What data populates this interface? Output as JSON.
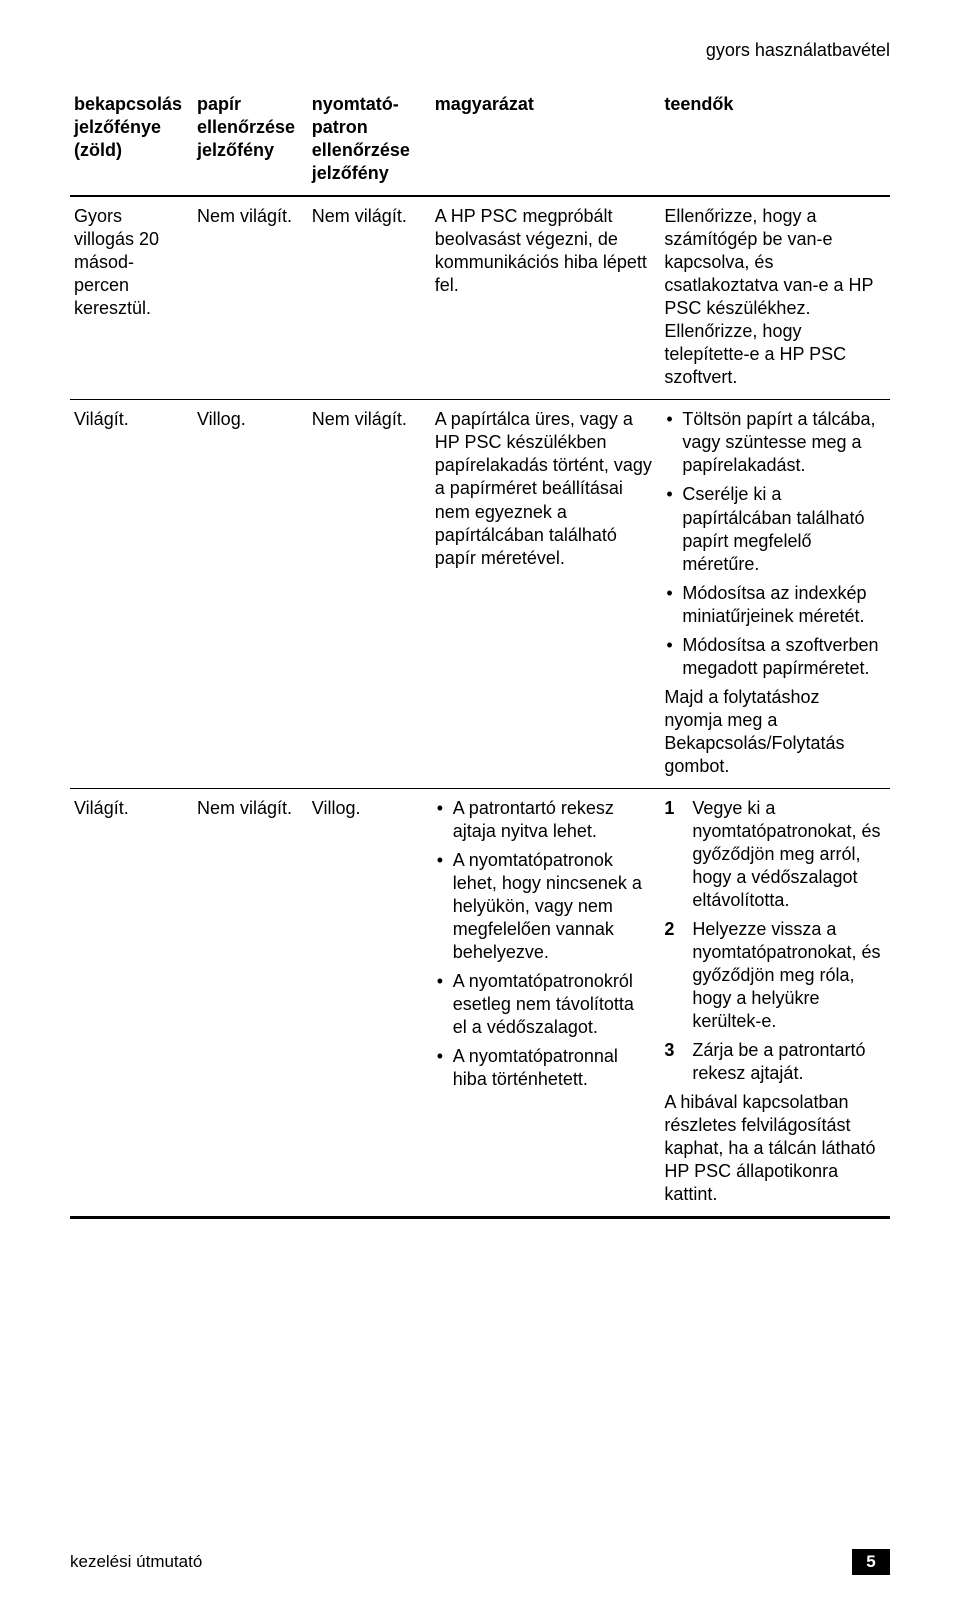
{
  "running_head": "gyors használatbavétel",
  "footer": {
    "label": "kezelési útmutató",
    "page": "5"
  },
  "table": {
    "headers": [
      "bekapcsolás jelzőfénye (zöld)",
      "papír ellenőrzése jelzőfény",
      "nyomtató-patron ellenőrzése jelzőfény",
      "magyarázat",
      "teendők"
    ],
    "rows": [
      {
        "c1": "Gyors villogás 20 másod-percen keresztül.",
        "c2": "Nem világít.",
        "c3": "Nem világít.",
        "c4_text": "A HP PSC megpróbált beolvasást végezni, de kommunikációs hiba lépett fel.",
        "c5_text": "Ellenőrizze, hogy a számítógép be van-e kapcsolva, és csatlakoztatva van-e a HP PSC készülékhez. Ellenőrizze, hogy telepítette-e a HP PSC szoftvert."
      },
      {
        "c1": "Világít.",
        "c2": "Villog.",
        "c3": "Nem világít.",
        "c4_text": "A papírtálca üres, vagy a HP PSC készülékben papírelakadás történt, vagy a papírméret beállításai nem egyeznek a papírtálcában található papír méretével.",
        "c5_list": [
          "Töltsön papírt a tálcába, vagy szüntesse meg a papírelakadást.",
          "Cserélje ki a papírtálcában található papírt megfelelő méretűre.",
          "Módosítsa az indexkép miniatűrjeinek méretét.",
          "Módosítsa a szoftverben megadott papírméretet."
        ],
        "c5_after": "Majd a folytatáshoz nyomja meg a Bekapcsolás/Folytatás gombot."
      },
      {
        "c1": "Világít.",
        "c2": "Nem világít.",
        "c3": "Villog.",
        "c4_list": [
          "A patrontartó rekesz ajtaja nyitva lehet.",
          "A nyomtatópatronok lehet, hogy nincsenek a helyükön, vagy nem megfelelően vannak behelyezve.",
          "A nyomtatópatronokról esetleg nem távolította el a védőszalagot.",
          "A nyomtatópatronnal hiba történhetett."
        ],
        "c5_numlist": [
          {
            "n": "1",
            "t": "Vegye ki a nyomtatópatronokat, és győződjön meg arról, hogy a védőszalagot eltávolította."
          },
          {
            "n": "2",
            "t": "Helyezze vissza a nyomtatópatronokat, és győződjön meg róla, hogy a helyükre kerültek-e."
          },
          {
            "n": "3",
            "t": "Zárja be a patrontartó rekesz ajtaját."
          }
        ],
        "c5_after": "A hibával kapcsolatban részletes felvilágosítást kaphat, ha a tálcán látható HP PSC állapotikonra kattint."
      }
    ]
  }
}
